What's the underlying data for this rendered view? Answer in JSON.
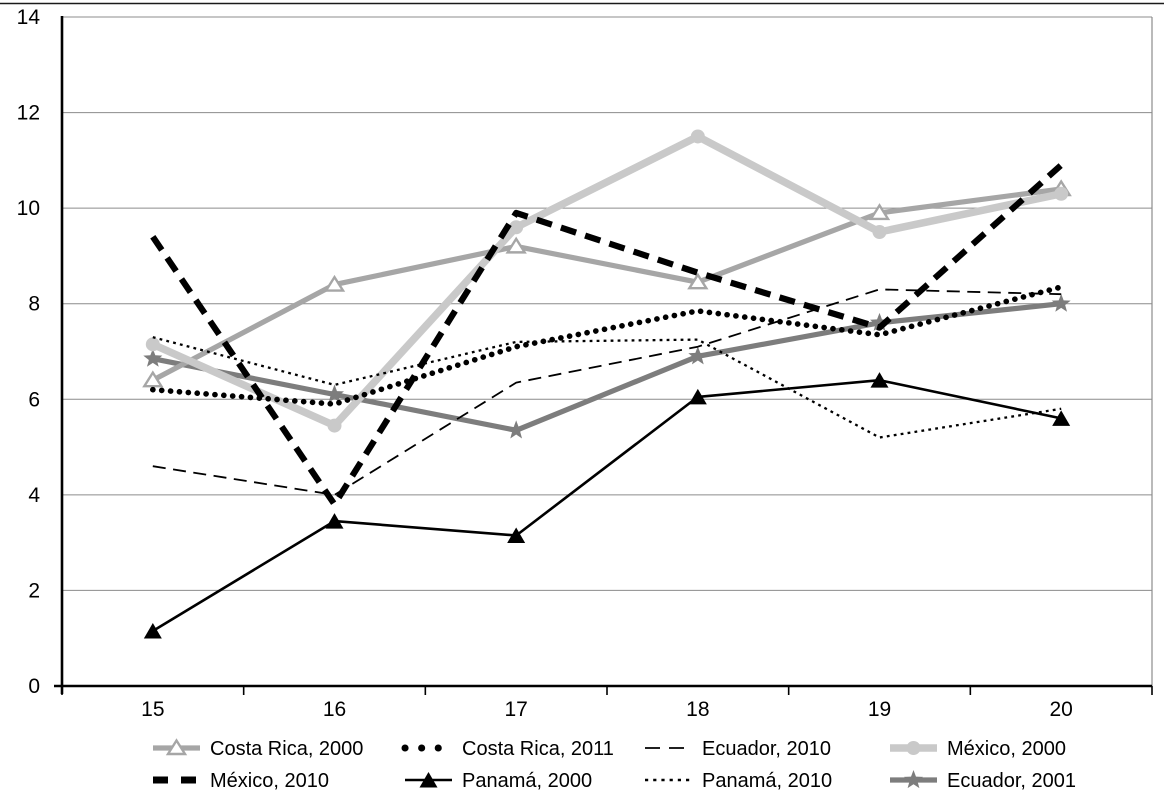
{
  "page": {
    "background": "#ffffff"
  },
  "chart_data": {
    "type": "line",
    "x": [
      15,
      16,
      17,
      18,
      19,
      20
    ],
    "x_tick_labels": [
      "15",
      "16",
      "17",
      "18",
      "19",
      "20"
    ],
    "y_tick_labels": [
      "0",
      "2",
      "4",
      "6",
      "8",
      "10",
      "12",
      "14"
    ],
    "yticks": [
      0,
      2,
      4,
      6,
      8,
      10,
      12,
      14
    ],
    "ylim": [
      0,
      14
    ],
    "title": "",
    "xlabel": "",
    "ylabel": "",
    "grid": true,
    "legend_position": "bottom",
    "series": [
      {
        "name": "Costa Rica, 2000",
        "values": [
          6.4,
          8.4,
          9.2,
          8.45,
          9.9,
          10.4
        ],
        "color": "#a6a6a6",
        "style": "solid-thick",
        "marker": "open-triangle"
      },
      {
        "name": "Costa Rica, 2011",
        "values": [
          6.2,
          5.9,
          7.1,
          7.85,
          7.35,
          8.35
        ],
        "color": "#000000",
        "style": "bold-dotted",
        "marker": "none"
      },
      {
        "name": "Ecuador, 2010",
        "values": [
          4.6,
          4.0,
          6.35,
          7.1,
          8.3,
          8.2
        ],
        "color": "#000000",
        "style": "thin-dashed",
        "marker": "none"
      },
      {
        "name": "México, 2000",
        "values": [
          7.15,
          5.45,
          9.6,
          11.5,
          9.5,
          10.3
        ],
        "color": "#c9c9c9",
        "style": "solid-xthick",
        "marker": "circle"
      },
      {
        "name": "México, 2010",
        "values": [
          9.4,
          3.8,
          9.9,
          8.65,
          7.5,
          10.9
        ],
        "color": "#000000",
        "style": "bold-dashed",
        "marker": "none"
      },
      {
        "name": "Panamá, 2000",
        "values": [
          1.15,
          3.45,
          3.15,
          6.05,
          6.4,
          5.6
        ],
        "color": "#000000",
        "style": "solid-thin",
        "marker": "filled-triangle"
      },
      {
        "name": "Panamá, 2010",
        "values": [
          7.3,
          6.3,
          7.2,
          7.25,
          5.2,
          5.8
        ],
        "color": "#000000",
        "style": "fine-dotted",
        "marker": "none"
      },
      {
        "name": "Ecuador, 2001",
        "values": [
          6.85,
          6.1,
          5.35,
          6.9,
          7.6,
          8.0
        ],
        "color": "#7d7d7d",
        "style": "solid-thick",
        "marker": "star"
      }
    ],
    "z_order": [
      "Ecuador, 2001",
      "Costa Rica, 2000",
      "México, 2000",
      "Ecuador, 2010",
      "Panamá, 2010",
      "Costa Rica, 2011",
      "México, 2010",
      "Panamá, 2000"
    ],
    "legend_rows": [
      [
        "Costa Rica, 2000",
        "Costa Rica, 2011",
        "Ecuador, 2010",
        "México, 2000"
      ],
      [
        "México, 2010",
        "Panamá, 2000",
        "Panamá, 2010",
        "Ecuador, 2001"
      ]
    ]
  },
  "colors": {
    "grid": "#8c8c8c",
    "axis": "#000000",
    "top_rule": "#1a1a1a",
    "text": "#000000"
  }
}
